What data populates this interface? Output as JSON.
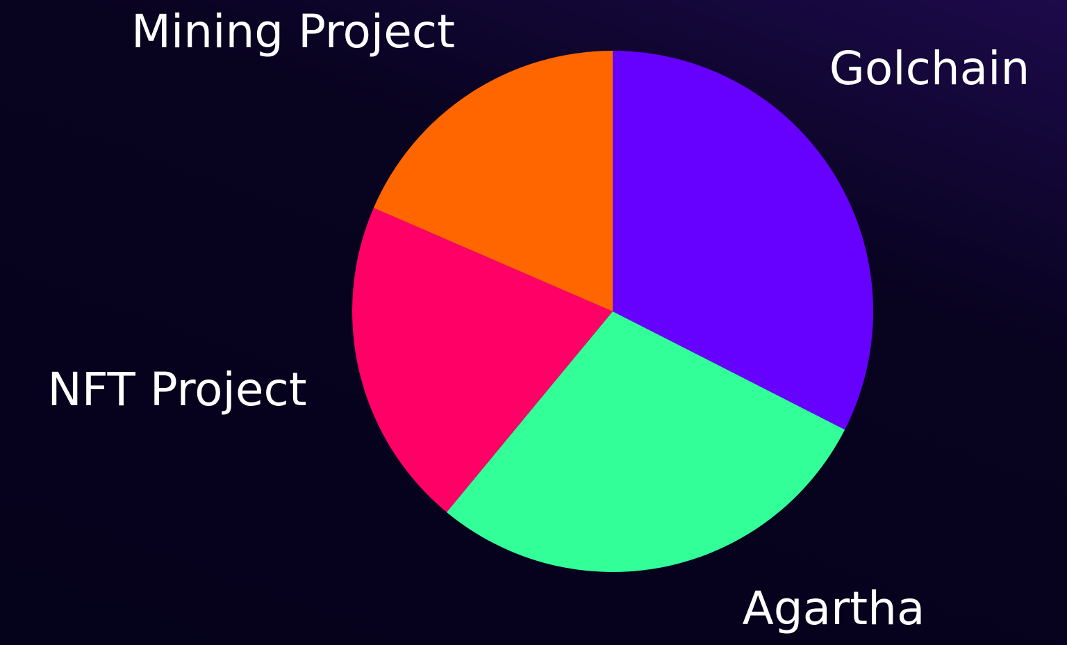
{
  "chart_data": {
    "type": "pie",
    "categories": [
      "Golchain",
      "Agartha",
      "NFT Project",
      "Mining Project"
    ],
    "values": [
      32.5,
      28.5,
      20.5,
      18.5
    ],
    "colors": [
      "#6600ff",
      "#33ff99",
      "#ff0066",
      "#ff6600"
    ]
  }
}
